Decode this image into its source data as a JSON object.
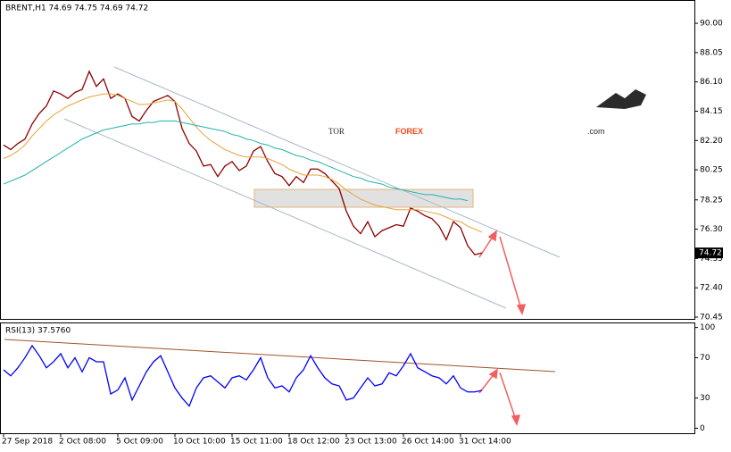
{
  "chart_data": [
    {
      "type": "line",
      "title": "BRENT,H1  74.69 74.75 74.69 74.72",
      "logo": [
        "TOR",
        "FOREX",
        ".com"
      ],
      "categories": [
        "27 Sep 2018",
        null,
        null,
        null,
        null,
        null,
        null,
        null,
        "2 Oct 08:00",
        null,
        null,
        null,
        null,
        null,
        null,
        null,
        "5 Oct 09:00",
        null,
        null,
        null,
        null,
        null,
        null,
        null,
        "10 Oct 10:00",
        null,
        null,
        null,
        null,
        null,
        null,
        null,
        "15 Oct 11:00",
        null,
        null,
        null,
        null,
        null,
        null,
        null,
        "18 Oct 12:00",
        null,
        null,
        null,
        null,
        null,
        null,
        null,
        "23 Oct 13:00",
        null,
        null,
        null,
        null,
        null,
        null,
        null,
        "26 Oct 14:00",
        null,
        null,
        null,
        null,
        null,
        null,
        null,
        "31 Oct 14:00",
        null,
        null,
        null
      ],
      "series": [
        {
          "color": "#8b0000",
          "values": [
            81.9,
            81.6,
            82.0,
            82.3,
            83.3,
            84.0,
            84.5,
            85.5,
            85.3,
            85.0,
            85.4,
            85.6,
            86.8,
            85.8,
            86.3,
            85.0,
            85.3,
            85.0,
            83.8,
            83.5,
            84.2,
            84.8,
            85.0,
            85.2,
            84.8,
            83.0,
            82.0,
            81.5,
            80.5,
            80.6,
            79.8,
            80.5,
            80.8,
            80.2,
            80.5,
            81.5,
            81.8,
            80.8,
            80.0,
            79.8,
            79.2,
            79.8,
            79.4,
            80.3,
            80.3,
            80.0,
            79.5,
            79.0,
            77.5,
            76.5,
            76.0,
            76.8,
            75.8,
            76.2,
            76.4,
            76.6,
            76.5,
            77.7,
            77.5,
            77.2,
            77.0,
            76.5,
            75.6,
            76.8,
            76.4,
            75.2,
            74.6,
            74.72
          ]
        },
        {
          "color": "#e8a33c",
          "values": [
            81.0,
            81.2,
            81.5,
            81.9,
            82.5,
            83.0,
            83.5,
            83.9,
            84.2,
            84.5,
            84.7,
            84.9,
            85.1,
            85.2,
            85.3,
            85.3,
            85.2,
            85.0,
            84.8,
            84.6,
            84.6,
            84.7,
            84.8,
            84.9,
            84.8,
            84.3,
            83.7,
            83.1,
            82.6,
            82.2,
            81.9,
            81.6,
            81.4,
            81.2,
            81.1,
            81.1,
            81.1,
            81.0,
            80.8,
            80.6,
            80.3,
            80.1,
            79.9,
            79.9,
            79.9,
            79.8,
            79.6,
            79.3,
            78.9,
            78.6,
            78.3,
            78.1,
            77.9,
            77.8,
            77.7,
            77.6,
            77.6,
            77.6,
            77.6,
            77.5,
            77.4,
            77.3,
            77.1,
            76.9,
            76.8,
            76.5,
            76.3,
            76.1
          ]
        },
        {
          "color": "#20b2aa",
          "values": [
            79.3,
            79.5,
            79.7,
            79.9,
            80.2,
            80.5,
            80.8,
            81.1,
            81.4,
            81.7,
            82.0,
            82.3,
            82.5,
            82.7,
            82.9,
            83.0,
            83.1,
            83.2,
            83.3,
            83.3,
            83.4,
            83.4,
            83.5,
            83.5,
            83.5,
            83.4,
            83.3,
            83.2,
            83.1,
            83.0,
            82.9,
            82.8,
            82.6,
            82.5,
            82.3,
            82.2,
            82.0,
            81.9,
            81.7,
            81.6,
            81.4,
            81.2,
            81.1,
            80.9,
            80.8,
            80.6,
            80.4,
            80.2,
            80.0,
            79.8,
            79.7,
            79.5,
            79.4,
            79.3,
            79.1,
            79.0,
            78.9,
            78.8,
            78.7,
            78.6,
            78.6,
            78.5,
            78.4,
            78.3,
            78.3,
            78.2,
            null,
            null
          ]
        }
      ],
      "last_price": 74.72,
      "ylim": [
        70.33,
        91.55
      ],
      "yticks": [
        {
          "value": 90,
          "label": "90.00"
        },
        88.05,
        {
          "value": 86.1,
          "label": "86.10"
        },
        84.15,
        {
          "value": 82.2,
          "label": "82.20"
        },
        80.25,
        78.25,
        {
          "value": 76.3,
          "label": "76.30"
        },
        74.35,
        {
          "value": 72.4,
          "label": "72.40"
        },
        70.45
      ]
    },
    {
      "type": "line",
      "title": "RSI(13) 37.5760",
      "series": [
        {
          "color": "#0000ff",
          "values": [
            58,
            52,
            60,
            70,
            82,
            72,
            60,
            66,
            74,
            60,
            70,
            56,
            70,
            66,
            66,
            34,
            38,
            50,
            28,
            42,
            56,
            66,
            72,
            56,
            40,
            30,
            22,
            40,
            50,
            52,
            46,
            40,
            50,
            52,
            48,
            58,
            70,
            50,
            40,
            42,
            36,
            50,
            58,
            72,
            60,
            50,
            44,
            42,
            28,
            30,
            40,
            50,
            42,
            44,
            55,
            52,
            62,
            74,
            60,
            56,
            52,
            50,
            44,
            52,
            40,
            36,
            36,
            37.576
          ]
        }
      ],
      "ylim": [
        -5,
        105
      ],
      "yticks": [
        100,
        70,
        30,
        0
      ]
    }
  ]
}
